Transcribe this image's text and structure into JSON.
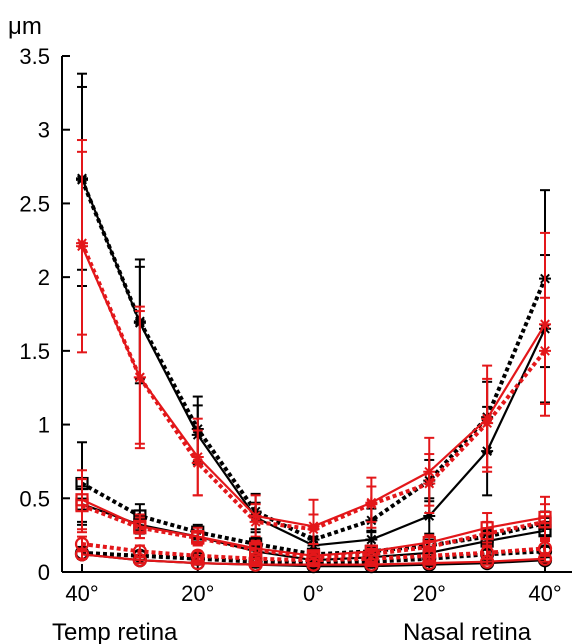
{
  "chart_data": {
    "type": "line",
    "ylabel": "μm",
    "ylim": [
      0,
      3.5
    ],
    "y_ticks": [
      "0",
      "0.5",
      "1",
      "1.5",
      "2",
      "2.5",
      "3",
      "3.5"
    ],
    "x": [
      -40,
      -30,
      -20,
      -10,
      0,
      10,
      20,
      30,
      40
    ],
    "x_ticks": [
      {
        "value": -40,
        "label": "40°"
      },
      {
        "value": -20,
        "label": "20°"
      },
      {
        "value": 0,
        "label": "0°"
      },
      {
        "value": 20,
        "label": "20°"
      },
      {
        "value": 40,
        "label": "40°"
      }
    ],
    "region_labels": {
      "left": "Temp retina",
      "right": "Nasal retina"
    },
    "colors": {
      "black": "#000000",
      "red": "#e3171a"
    },
    "series": [
      {
        "color": "black",
        "style": "solid",
        "marker": "star",
        "values": [
          2.67,
          1.69,
          0.93,
          0.37,
          0.18,
          0.22,
          0.38,
          0.82,
          1.65
        ],
        "errors": [
          0.62,
          0.38,
          0.2,
          0.1,
          0.06,
          0.06,
          0.12,
          0.3,
          0.5
        ]
      },
      {
        "color": "black",
        "style": "dotted",
        "marker": "star",
        "values": [
          2.66,
          1.7,
          0.97,
          0.41,
          0.22,
          0.35,
          0.62,
          1.05,
          1.99
        ],
        "errors": [
          0.72,
          0.42,
          0.22,
          0.12,
          0.07,
          0.08,
          0.14,
          0.24,
          0.6
        ]
      },
      {
        "color": "red",
        "style": "solid",
        "marker": "star",
        "values": [
          2.21,
          1.32,
          0.78,
          0.38,
          0.31,
          0.47,
          0.68,
          1.04,
          1.68
        ],
        "errors": [
          0.72,
          0.48,
          0.26,
          0.14,
          0.18,
          0.17,
          0.23,
          0.36,
          0.62
        ]
      },
      {
        "color": "red",
        "style": "dotted",
        "marker": "star",
        "values": [
          2.23,
          1.32,
          0.74,
          0.34,
          0.29,
          0.46,
          0.6,
          1.01,
          1.5
        ],
        "errors": [
          0.62,
          0.45,
          0.22,
          0.12,
          0.1,
          0.12,
          0.2,
          0.3,
          0.36
        ]
      },
      {
        "color": "black",
        "style": "solid",
        "marker": "square",
        "values": [
          0.46,
          0.32,
          0.24,
          0.14,
          0.08,
          0.1,
          0.13,
          0.21,
          0.28
        ],
        "errors": [
          0.12,
          0.06,
          0.04,
          0.03,
          0.02,
          0.03,
          0.03,
          0.04,
          0.06
        ]
      },
      {
        "color": "black",
        "style": "dotted",
        "marker": "square",
        "values": [
          0.6,
          0.38,
          0.27,
          0.19,
          0.12,
          0.14,
          0.18,
          0.24,
          0.33
        ],
        "errors": [
          0.28,
          0.08,
          0.05,
          0.04,
          0.03,
          0.03,
          0.04,
          0.05,
          0.08
        ]
      },
      {
        "color": "red",
        "style": "solid",
        "marker": "square",
        "values": [
          0.49,
          0.31,
          0.24,
          0.16,
          0.11,
          0.14,
          0.2,
          0.3,
          0.37
        ],
        "errors": [
          0.2,
          0.08,
          0.06,
          0.05,
          0.03,
          0.04,
          0.05,
          0.1,
          0.14
        ]
      },
      {
        "color": "red",
        "style": "dotted",
        "marker": "square",
        "values": [
          0.45,
          0.3,
          0.23,
          0.15,
          0.1,
          0.12,
          0.17,
          0.26,
          0.34
        ],
        "errors": [
          0.18,
          0.07,
          0.05,
          0.04,
          0.03,
          0.03,
          0.04,
          0.08,
          0.12
        ]
      },
      {
        "color": "black",
        "style": "solid",
        "marker": "circle",
        "values": [
          0.12,
          0.08,
          0.06,
          0.05,
          0.04,
          0.04,
          0.05,
          0.06,
          0.08
        ],
        "errors": [
          0.03,
          0.02,
          0.01,
          0.01,
          0.01,
          0.01,
          0.01,
          0.01,
          0.02
        ]
      },
      {
        "color": "black",
        "style": "dotted",
        "marker": "circle",
        "values": [
          0.13,
          0.11,
          0.09,
          0.07,
          0.06,
          0.07,
          0.09,
          0.12,
          0.14
        ],
        "errors": [
          0.04,
          0.03,
          0.02,
          0.02,
          0.01,
          0.02,
          0.02,
          0.03,
          0.03
        ]
      },
      {
        "color": "red",
        "style": "solid",
        "marker": "circle",
        "values": [
          0.12,
          0.08,
          0.06,
          0.05,
          0.05,
          0.05,
          0.06,
          0.07,
          0.09
        ],
        "errors": [
          0.03,
          0.02,
          0.01,
          0.01,
          0.01,
          0.01,
          0.01,
          0.02,
          0.02
        ]
      },
      {
        "color": "red",
        "style": "dotted",
        "marker": "circle",
        "values": [
          0.19,
          0.14,
          0.11,
          0.09,
          0.08,
          0.09,
          0.11,
          0.13,
          0.16
        ],
        "errors": [
          0.05,
          0.04,
          0.03,
          0.02,
          0.02,
          0.02,
          0.03,
          0.04,
          0.05
        ]
      }
    ]
  }
}
